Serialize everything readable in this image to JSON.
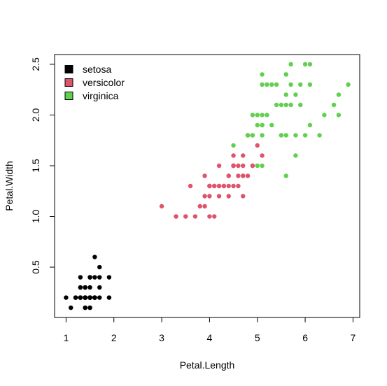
{
  "chart_data": {
    "type": "scatter",
    "title": "",
    "xlabel": "Petal.Length",
    "ylabel": "Petal.Width",
    "xlim": [
      0.76,
      7.14
    ],
    "ylim": [
      0.004,
      2.596
    ],
    "xticks": [
      "1",
      "2",
      "3",
      "4",
      "5",
      "6",
      "7"
    ],
    "yticks": [
      "0.5",
      "1.0",
      "1.5",
      "2.0",
      "2.5"
    ],
    "grid": false,
    "legend": "top-left",
    "series": [
      {
        "name": "setosa",
        "color": "#000000",
        "points": [
          [
            1.4,
            0.2
          ],
          [
            1.4,
            0.2
          ],
          [
            1.3,
            0.2
          ],
          [
            1.5,
            0.2
          ],
          [
            1.4,
            0.2
          ],
          [
            1.7,
            0.4
          ],
          [
            1.4,
            0.3
          ],
          [
            1.5,
            0.2
          ],
          [
            1.4,
            0.2
          ],
          [
            1.5,
            0.1
          ],
          [
            1.5,
            0.2
          ],
          [
            1.6,
            0.2
          ],
          [
            1.4,
            0.1
          ],
          [
            1.1,
            0.1
          ],
          [
            1.2,
            0.2
          ],
          [
            1.5,
            0.4
          ],
          [
            1.3,
            0.4
          ],
          [
            1.4,
            0.3
          ],
          [
            1.7,
            0.3
          ],
          [
            1.5,
            0.3
          ],
          [
            1.7,
            0.2
          ],
          [
            1.5,
            0.4
          ],
          [
            1.0,
            0.2
          ],
          [
            1.7,
            0.5
          ],
          [
            1.9,
            0.2
          ],
          [
            1.6,
            0.2
          ],
          [
            1.6,
            0.4
          ],
          [
            1.5,
            0.2
          ],
          [
            1.4,
            0.2
          ],
          [
            1.6,
            0.2
          ],
          [
            1.6,
            0.2
          ],
          [
            1.5,
            0.4
          ],
          [
            1.5,
            0.1
          ],
          [
            1.4,
            0.2
          ],
          [
            1.5,
            0.2
          ],
          [
            1.2,
            0.2
          ],
          [
            1.3,
            0.2
          ],
          [
            1.4,
            0.1
          ],
          [
            1.3,
            0.2
          ],
          [
            1.5,
            0.2
          ],
          [
            1.3,
            0.3
          ],
          [
            1.3,
            0.3
          ],
          [
            1.3,
            0.2
          ],
          [
            1.6,
            0.6
          ],
          [
            1.9,
            0.4
          ],
          [
            1.4,
            0.3
          ],
          [
            1.6,
            0.2
          ],
          [
            1.4,
            0.2
          ],
          [
            1.5,
            0.2
          ],
          [
            1.4,
            0.2
          ]
        ]
      },
      {
        "name": "versicolor",
        "color": "#DF536B",
        "points": [
          [
            4.7,
            1.4
          ],
          [
            4.5,
            1.5
          ],
          [
            4.9,
            1.5
          ],
          [
            4.0,
            1.3
          ],
          [
            4.6,
            1.5
          ],
          [
            4.5,
            1.3
          ],
          [
            4.7,
            1.6
          ],
          [
            3.3,
            1.0
          ],
          [
            4.6,
            1.3
          ],
          [
            3.9,
            1.4
          ],
          [
            3.5,
            1.0
          ],
          [
            4.2,
            1.5
          ],
          [
            4.0,
            1.0
          ],
          [
            4.7,
            1.4
          ],
          [
            3.6,
            1.3
          ],
          [
            4.4,
            1.4
          ],
          [
            4.5,
            1.5
          ],
          [
            4.1,
            1.0
          ],
          [
            4.5,
            1.5
          ],
          [
            3.9,
            1.1
          ],
          [
            4.8,
            1.8
          ],
          [
            4.0,
            1.3
          ],
          [
            4.9,
            1.5
          ],
          [
            4.7,
            1.2
          ],
          [
            4.3,
            1.3
          ],
          [
            4.4,
            1.4
          ],
          [
            4.8,
            1.4
          ],
          [
            5.0,
            1.7
          ],
          [
            4.5,
            1.5
          ],
          [
            3.5,
            1.0
          ],
          [
            3.8,
            1.1
          ],
          [
            3.7,
            1.0
          ],
          [
            3.9,
            1.2
          ],
          [
            5.1,
            1.6
          ],
          [
            4.5,
            1.5
          ],
          [
            4.5,
            1.6
          ],
          [
            4.7,
            1.5
          ],
          [
            4.4,
            1.3
          ],
          [
            4.1,
            1.3
          ],
          [
            4.0,
            1.3
          ],
          [
            4.4,
            1.2
          ],
          [
            4.6,
            1.4
          ],
          [
            4.0,
            1.2
          ],
          [
            3.3,
            1.0
          ],
          [
            4.2,
            1.3
          ],
          [
            4.2,
            1.2
          ],
          [
            4.2,
            1.3
          ],
          [
            4.3,
            1.3
          ],
          [
            3.0,
            1.1
          ],
          [
            4.1,
            1.3
          ]
        ]
      },
      {
        "name": "virginica",
        "color": "#61D04F",
        "points": [
          [
            6.0,
            2.5
          ],
          [
            5.1,
            1.9
          ],
          [
            5.9,
            2.1
          ],
          [
            5.6,
            1.8
          ],
          [
            5.8,
            2.2
          ],
          [
            6.6,
            2.1
          ],
          [
            4.5,
            1.7
          ],
          [
            6.3,
            1.8
          ],
          [
            5.8,
            1.8
          ],
          [
            6.1,
            2.5
          ],
          [
            5.1,
            2.0
          ],
          [
            5.3,
            1.9
          ],
          [
            5.5,
            2.1
          ],
          [
            5.0,
            2.0
          ],
          [
            5.1,
            2.4
          ],
          [
            5.3,
            2.3
          ],
          [
            5.5,
            1.8
          ],
          [
            6.7,
            2.2
          ],
          [
            6.9,
            2.3
          ],
          [
            5.0,
            1.5
          ],
          [
            5.7,
            2.3
          ],
          [
            4.9,
            2.0
          ],
          [
            6.7,
            2.0
          ],
          [
            4.9,
            1.8
          ],
          [
            5.7,
            2.1
          ],
          [
            6.0,
            1.8
          ],
          [
            4.8,
            1.8
          ],
          [
            4.9,
            1.8
          ],
          [
            5.6,
            2.1
          ],
          [
            5.8,
            1.6
          ],
          [
            6.1,
            1.9
          ],
          [
            6.4,
            2.0
          ],
          [
            5.6,
            2.2
          ],
          [
            5.1,
            1.5
          ],
          [
            5.6,
            1.4
          ],
          [
            6.1,
            2.3
          ],
          [
            5.6,
            2.4
          ],
          [
            5.5,
            1.8
          ],
          [
            4.8,
            1.8
          ],
          [
            5.4,
            2.1
          ],
          [
            5.6,
            2.4
          ],
          [
            5.1,
            2.3
          ],
          [
            5.1,
            1.9
          ],
          [
            5.9,
            2.3
          ],
          [
            5.7,
            2.5
          ],
          [
            5.2,
            2.3
          ],
          [
            5.0,
            1.9
          ],
          [
            5.2,
            2.0
          ],
          [
            5.4,
            2.3
          ],
          [
            5.1,
            1.8
          ]
        ]
      }
    ]
  }
}
